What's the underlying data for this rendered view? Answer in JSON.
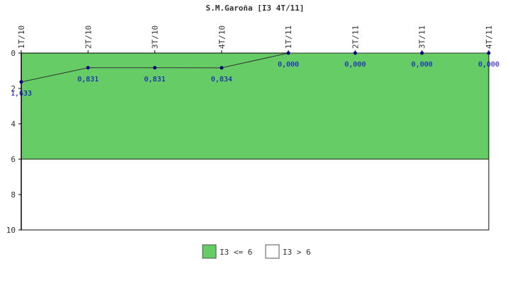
{
  "chart_data": {
    "type": "line",
    "title": "S.M.Garoña [I3 4T/11]",
    "categories": [
      "1T/10",
      "2T/10",
      "3T/10",
      "4T/10",
      "1T/11",
      "2T/11",
      "3T/11",
      "4T/11"
    ],
    "series": [
      {
        "values": [
          1.633,
          0.831,
          0.831,
          0.834,
          0.0,
          0.0,
          0.0,
          0.0
        ],
        "labels": [
          "1,633",
          "0,831",
          "0,831",
          "0,834",
          "0,000",
          "0,000",
          "0,000",
          "0,000"
        ],
        "color": "#000080"
      }
    ],
    "ylim": [
      0,
      10
    ],
    "y_inverted": true,
    "y_ticks": [
      0,
      2,
      4,
      6,
      8,
      10
    ],
    "x_axis_position": "top",
    "bands": [
      {
        "from": 0,
        "to": 6,
        "label": "I3 <= 6",
        "color": "#66cc66"
      },
      {
        "from": 6,
        "to": 10,
        "label": "I3 > 6",
        "color": "#ffffff"
      }
    ],
    "legend_position": "bottom"
  }
}
